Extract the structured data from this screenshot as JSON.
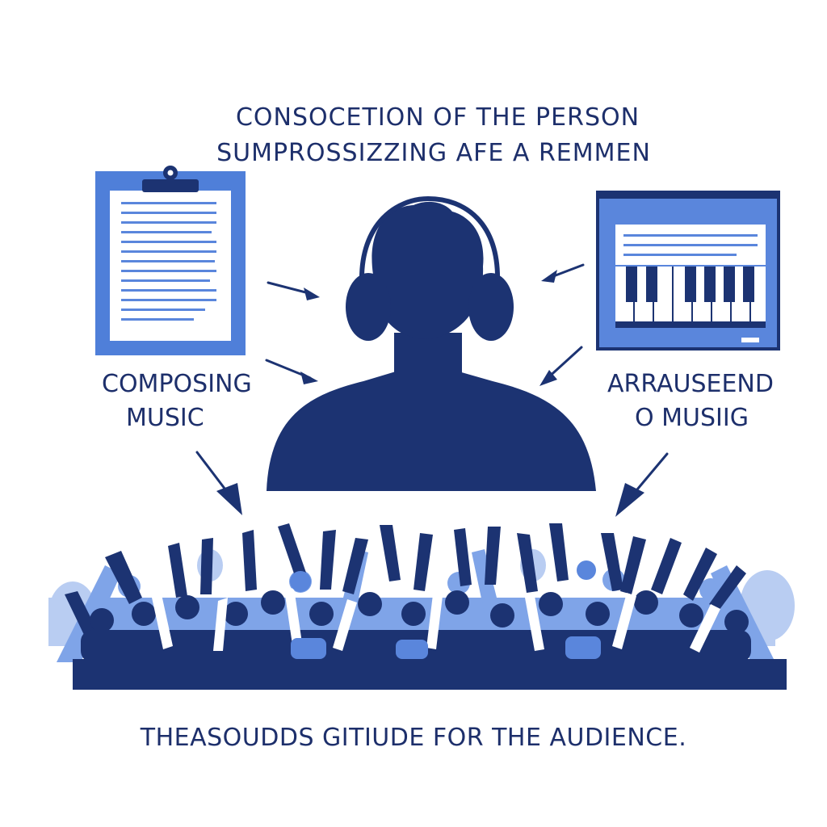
{
  "diagram": {
    "title_lines": [
      "CONSOCETION OF THE PERSON",
      "SUMPROSSIZZING AFE A REMMEN"
    ],
    "left_panel": {
      "icon": "clipboard-document-icon",
      "label_lines": [
        "COMPOSING",
        "MUSIC"
      ]
    },
    "center": {
      "icon": "person-with-headphones-icon"
    },
    "right_panel": {
      "icon": "piano-keyboard-screen-icon",
      "label_lines": [
        "ARRAUSEEND",
        "O MUSIIG"
      ]
    },
    "audience": {
      "icon": "cheering-crowd-icon"
    },
    "caption": "THEASOUDDS GITIUDE FOR THE AUDIENCE."
  },
  "colors": {
    "navy": "#1c3372",
    "navy_text": "#1d2f6b",
    "blue": "#4f7fd9",
    "light_blue": "#7fa4e8",
    "pale_blue": "#b9cdf2",
    "white": "#ffffff"
  }
}
